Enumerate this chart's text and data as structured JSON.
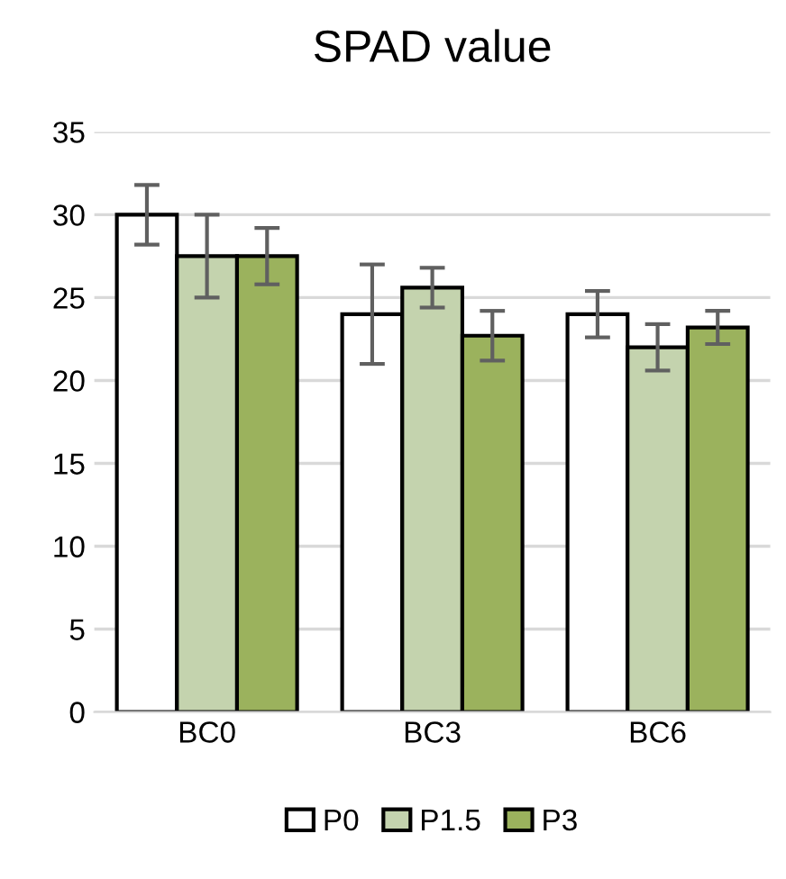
{
  "chart_data": {
    "type": "bar",
    "title": "SPAD value",
    "categories": [
      "BC0",
      "BC3",
      "BC6"
    ],
    "series": [
      {
        "name": "P0",
        "color": "#ffffff",
        "values": [
          30,
          24,
          24
        ],
        "errors": [
          1.8,
          3,
          1.4
        ]
      },
      {
        "name": "P1.5",
        "color": "#c4d3ae",
        "values": [
          27.5,
          25.6,
          22
        ],
        "errors": [
          2.5,
          1.2,
          1.4
        ]
      },
      {
        "name": "P3",
        "color": "#9bb25d",
        "values": [
          27.5,
          22.7,
          23.2
        ],
        "errors": [
          1.7,
          1.5,
          1.0
        ]
      }
    ],
    "ylim": [
      0,
      35
    ],
    "yticks": [
      0,
      5,
      10,
      15,
      20,
      25,
      30,
      35
    ],
    "grid": "y",
    "legend": "bottom"
  }
}
